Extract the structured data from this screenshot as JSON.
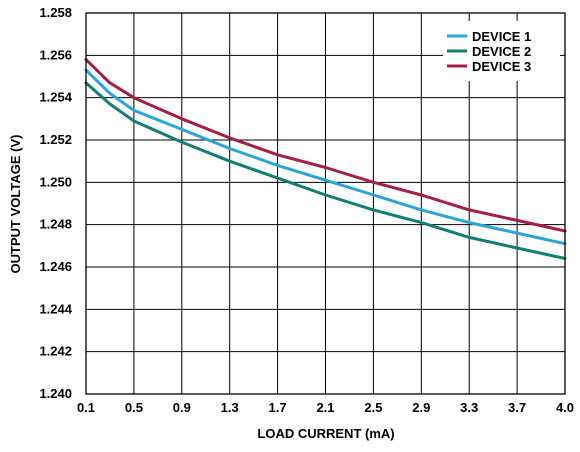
{
  "chart_data": {
    "type": "line",
    "xlabel": "LOAD CURRENT (mA)",
    "ylabel": "OUTPUT VOLTAGE (V)",
    "x_ticks": [
      "0.1",
      "0.5",
      "0.9",
      "1.3",
      "1.7",
      "2.1",
      "2.5",
      "2.9",
      "3.3",
      "3.7",
      "4.0"
    ],
    "y_ticks": [
      "1.240",
      "1.242",
      "1.244",
      "1.246",
      "1.248",
      "1.250",
      "1.252",
      "1.254",
      "1.256",
      "1.258"
    ],
    "ylim": [
      1.24,
      1.258
    ],
    "grid": true,
    "legend_position": "top-right",
    "series": [
      {
        "name": "DEVICE 1",
        "color": "#2AA4DD",
        "x": [
          0.1,
          0.3,
          0.5,
          0.9,
          1.3,
          1.7,
          2.1,
          2.5,
          2.9,
          3.3,
          3.7,
          4.0
        ],
        "y": [
          1.2553,
          1.2542,
          1.2534,
          1.2525,
          1.2516,
          1.2508,
          1.2501,
          1.2494,
          1.2487,
          1.2481,
          1.2476,
          1.2471
        ]
      },
      {
        "name": "DEVICE 2",
        "color": "#127E74",
        "x": [
          0.1,
          0.3,
          0.5,
          0.9,
          1.3,
          1.7,
          2.1,
          2.5,
          2.9,
          3.3,
          3.7,
          4.0
        ],
        "y": [
          1.2547,
          1.2537,
          1.2529,
          1.2519,
          1.251,
          1.2502,
          1.2494,
          1.2487,
          1.2481,
          1.2474,
          1.2469,
          1.2464
        ]
      },
      {
        "name": "DEVICE 3",
        "color": "#A51F45",
        "x": [
          0.1,
          0.3,
          0.5,
          0.9,
          1.3,
          1.7,
          2.1,
          2.5,
          2.9,
          3.3,
          3.7,
          4.0
        ],
        "y": [
          1.2558,
          1.2547,
          1.254,
          1.253,
          1.2521,
          1.2513,
          1.2507,
          1.25,
          1.2494,
          1.2487,
          1.2482,
          1.2477
        ]
      }
    ]
  }
}
